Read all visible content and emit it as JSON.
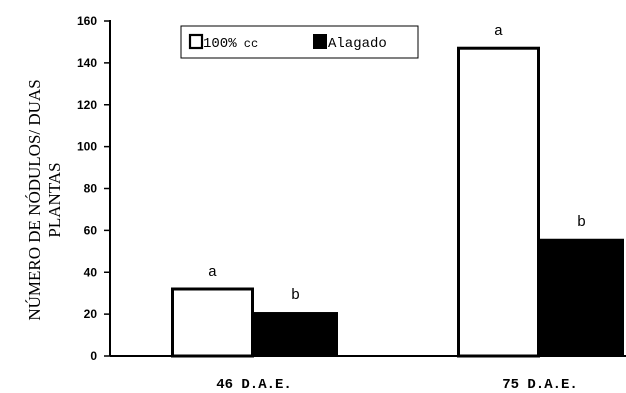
{
  "chart_data": {
    "type": "bar",
    "categories": [
      "46 D.A.E.",
      "75 D.A.E."
    ],
    "series": [
      {
        "name": "100% cc",
        "values": [
          32,
          147
        ],
        "labels": [
          "a",
          "a"
        ],
        "color": "#ffffff"
      },
      {
        "name": "Alagado",
        "values": [
          21,
          56
        ],
        "labels": [
          "b",
          "b"
        ],
        "color": "#000000"
      }
    ],
    "title": "",
    "xlabel": "",
    "ylabel_lines": [
      "NÚMERO DE NÓDULOS/ DUAS",
      "PLANTAS"
    ],
    "ylim": [
      0,
      160
    ],
    "yticks": [
      0,
      20,
      40,
      60,
      80,
      100,
      120,
      140,
      160
    ],
    "grid": false,
    "legend_position": "top-center"
  }
}
